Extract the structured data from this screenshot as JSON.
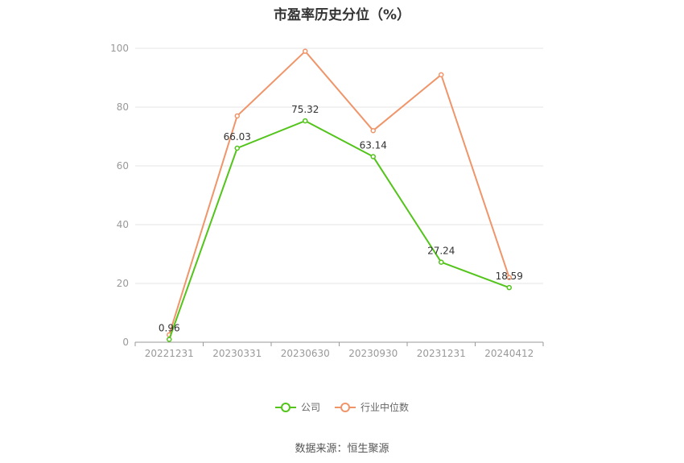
{
  "chart_data": {
    "type": "line",
    "title": "市盈率历史分位（%）",
    "categories": [
      "20221231",
      "20230331",
      "20230630",
      "20230930",
      "20231231",
      "20240412"
    ],
    "ylim": [
      0,
      100
    ],
    "yticks": [
      0,
      20,
      40,
      60,
      80,
      100
    ],
    "grid": true,
    "legend_position": "bottom-center",
    "series": [
      {
        "name": "公司",
        "values": [
          0.96,
          66.03,
          75.32,
          63.14,
          27.24,
          18.59
        ],
        "color": "#52c41a",
        "show_labels": true
      },
      {
        "name": "行业中位数",
        "values": [
          2.5,
          77.0,
          99.0,
          72.0,
          91.0,
          22.0
        ],
        "color": "#f0956a",
        "show_labels": false
      }
    ]
  },
  "source_text": "数据来源：恒生聚源"
}
